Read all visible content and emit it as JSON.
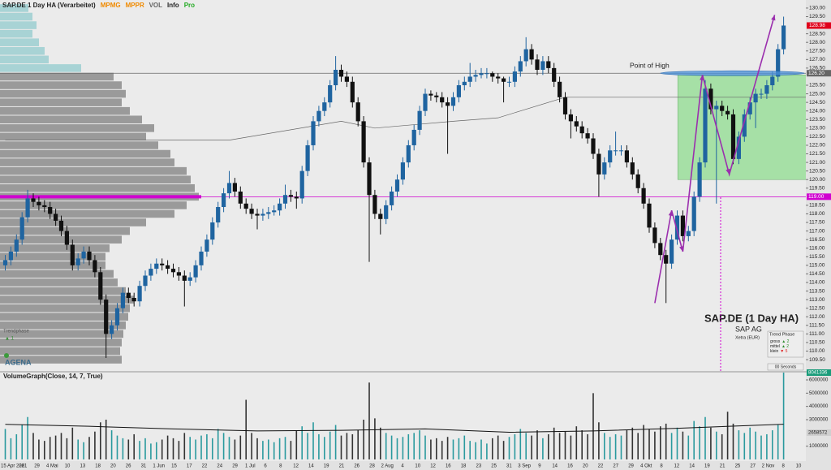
{
  "chart_data": {
    "type": "candlestick",
    "title": "SAP.DE 1 Day HA (Verarbeitet)",
    "indicators": [
      {
        "name": "MPMG",
        "color": "#f08a00"
      },
      {
        "name": "MPPR",
        "color": "#f08a00"
      },
      {
        "name": "VOL",
        "color": "#666666"
      },
      {
        "name": "Info",
        "color": "#222222"
      },
      {
        "name": "Pro",
        "color": "#22aa22"
      }
    ],
    "up_color": "#1f64a0",
    "down_color": "#111111",
    "volume_up_color": "#2a9a9e",
    "volume_down_color": "#333333",
    "ylim": [
      108.84,
      130.47
    ],
    "yticks": [
      {
        "value": 109.5,
        "label": "109.50"
      },
      {
        "value": 110,
        "label": "110.00"
      },
      {
        "value": 110.5,
        "label": "110.50"
      },
      {
        "value": 111,
        "label": "111.00"
      },
      {
        "value": 111.5,
        "label": "111.50"
      },
      {
        "value": 112,
        "label": "112.00"
      },
      {
        "value": 112.5,
        "label": "112.50"
      },
      {
        "value": 113,
        "label": "113.00"
      },
      {
        "value": 113.5,
        "label": "113.50"
      },
      {
        "value": 114,
        "label": "114.00"
      },
      {
        "value": 114.5,
        "label": "114.50"
      },
      {
        "value": 115,
        "label": "115.00"
      },
      {
        "value": 115.5,
        "label": "115.50"
      },
      {
        "value": 116,
        "label": "116.00"
      },
      {
        "value": 116.5,
        "label": "116.50"
      },
      {
        "value": 117,
        "label": "117.00"
      },
      {
        "value": 117.5,
        "label": "117.50"
      },
      {
        "value": 118,
        "label": "118.00"
      },
      {
        "value": 118.5,
        "label": "118.50"
      },
      {
        "value": 119.5,
        "label": "119.50"
      },
      {
        "value": 120,
        "label": "120.00"
      },
      {
        "value": 120.5,
        "label": "120.50"
      },
      {
        "value": 121,
        "label": "121.00"
      },
      {
        "value": 121.5,
        "label": "121.50"
      },
      {
        "value": 122,
        "label": "122.00"
      },
      {
        "value": 122.5,
        "label": "122.50"
      },
      {
        "value": 123,
        "label": "123.00"
      },
      {
        "value": 123.5,
        "label": "123.50"
      },
      {
        "value": 124,
        "label": "124.00"
      },
      {
        "value": 124.5,
        "label": "124.50"
      },
      {
        "value": 125,
        "label": "125.00"
      },
      {
        "value": 125.5,
        "label": "125.50"
      },
      {
        "value": 126.5,
        "label": "126.50"
      },
      {
        "value": 127,
        "label": "127.00"
      },
      {
        "value": 127.5,
        "label": "127.50"
      },
      {
        "value": 128,
        "label": "128.00"
      },
      {
        "value": 128.5,
        "label": "128.50"
      },
      {
        "value": 129.5,
        "label": "129.50"
      },
      {
        "value": 130,
        "label": "130.00"
      }
    ],
    "current_color": "#e0001b",
    "open": [
      115.0,
      115.3,
      115.8,
      116.5,
      117.8,
      118.9,
      118.7,
      118.5,
      118.4,
      118.0,
      117.6,
      117.0,
      116.2,
      115.0,
      115.4,
      115.8,
      115.3,
      114.6,
      113.0,
      111.0,
      111.5,
      112.5,
      113.4,
      113.1,
      112.9,
      113.8,
      114.4,
      114.8,
      115.1,
      115.0,
      114.8,
      114.6,
      114.4,
      114.1,
      114.3,
      115.0,
      115.8,
      116.5,
      117.5,
      118.4,
      119.2,
      119.8,
      119.3,
      118.6,
      118.3,
      118.0,
      117.9,
      118.0,
      118.1,
      118.2,
      118.6,
      119.1,
      119.0,
      118.9,
      120.5,
      122.0,
      123.4,
      124.0,
      124.5,
      125.5,
      126.4,
      126.0,
      125.7,
      124.5,
      123.4,
      121.0,
      119.1,
      118.0,
      117.7,
      118.5,
      119.3,
      120.0,
      121.0,
      122.0,
      122.9,
      124.0,
      125.0,
      124.9,
      124.8,
      124.5,
      124.3,
      124.8,
      125.5,
      125.7,
      126.0,
      126.1,
      126.2,
      126.2,
      126.0,
      125.9,
      125.7,
      125.7,
      126.3,
      126.9,
      127.6,
      127.0,
      126.4,
      126.9,
      126.5,
      125.7,
      124.8,
      123.8,
      123.4,
      123.1,
      122.7,
      122.4,
      121.5,
      120.3,
      121.0,
      121.7,
      121.7,
      121.7,
      121.0,
      120.3,
      119.5,
      118.6,
      117.2,
      116.3,
      115.6,
      115.1,
      116.5,
      117.9,
      116.7,
      117.0,
      119.0,
      121.0,
      125.3,
      124.1,
      124.3,
      124.0,
      123.8,
      121.2,
      122.5,
      123.8,
      124.5,
      125.0,
      125.0,
      125.5,
      126.0,
      127.6
    ],
    "high": [
      115.6,
      116.1,
      116.8,
      118.1,
      119.4,
      119.2,
      119.0,
      118.8,
      118.7,
      118.3,
      117.9,
      117.3,
      116.5,
      115.7,
      116.1,
      116.1,
      115.6,
      114.9,
      113.3,
      111.8,
      112.8,
      113.7,
      113.7,
      113.4,
      114.1,
      114.7,
      115.1,
      115.4,
      115.4,
      115.3,
      115.1,
      114.9,
      114.7,
      114.6,
      115.3,
      116.1,
      116.8,
      117.8,
      118.7,
      119.5,
      120.5,
      120.1,
      119.6,
      118.9,
      118.6,
      118.3,
      118.3,
      118.4,
      118.5,
      118.9,
      119.7,
      119.4,
      119.3,
      120.8,
      122.3,
      123.7,
      124.3,
      124.8,
      125.8,
      127.2,
      126.7,
      126.3,
      126.0,
      124.8,
      123.7,
      121.3,
      119.4,
      118.3,
      118.8,
      119.6,
      120.3,
      121.3,
      122.3,
      123.2,
      124.3,
      125.3,
      125.2,
      125.1,
      125.1,
      124.8,
      125.1,
      125.8,
      126.0,
      126.8,
      126.4,
      126.5,
      126.5,
      126.3,
      126.2,
      126.0,
      126.0,
      126.6,
      127.2,
      128.3,
      127.9,
      127.3,
      127.2,
      127.2,
      126.8,
      126.0,
      125.1,
      124.1,
      123.7,
      123.4,
      123.0,
      122.7,
      121.8,
      121.3,
      122.0,
      122.8,
      122.0,
      122.0,
      121.3,
      120.6,
      119.8,
      118.9,
      117.5,
      116.6,
      115.9,
      116.8,
      118.2,
      118.2,
      117.3,
      119.3,
      121.3,
      125.8,
      125.6,
      124.6,
      124.6,
      124.3,
      124.1,
      122.8,
      124.1,
      124.8,
      125.3,
      125.3,
      125.8,
      126.3,
      127.9,
      129.5
    ],
    "low": [
      114.7,
      115.0,
      115.5,
      116.2,
      117.5,
      118.4,
      118.2,
      118.1,
      117.7,
      117.3,
      116.7,
      115.9,
      114.7,
      114.7,
      115.1,
      115.0,
      114.3,
      112.7,
      109.6,
      110.7,
      111.2,
      112.2,
      112.8,
      112.6,
      112.6,
      113.5,
      114.1,
      114.5,
      114.7,
      114.5,
      114.3,
      114.1,
      112.6,
      113.8,
      114.0,
      114.7,
      115.5,
      116.2,
      117.2,
      118.1,
      118.9,
      119.0,
      118.3,
      118.0,
      117.7,
      117.1,
      117.6,
      117.7,
      117.9,
      117.9,
      118.3,
      118.7,
      118.3,
      118.6,
      120.2,
      121.7,
      123.1,
      123.7,
      124.2,
      125.2,
      125.7,
      125.4,
      124.2,
      123.1,
      120.7,
      115.2,
      117.7,
      116.8,
      117.4,
      118.2,
      119.0,
      119.7,
      120.7,
      121.7,
      122.6,
      123.7,
      124.6,
      124.5,
      124.2,
      121.5,
      124.0,
      124.5,
      125.2,
      125.4,
      125.7,
      125.9,
      125.9,
      125.7,
      125.6,
      124.5,
      125.4,
      125.4,
      126.0,
      126.6,
      126.7,
      126.1,
      126.1,
      126.2,
      125.4,
      124.5,
      123.5,
      122.4,
      122.8,
      122.4,
      122.1,
      121.2,
      119.0,
      120.0,
      120.7,
      121.4,
      121.4,
      120.7,
      120.0,
      119.2,
      118.3,
      116.9,
      116.0,
      115.3,
      112.8,
      114.8,
      116.2,
      116.4,
      116.4,
      116.7,
      118.7,
      120.7,
      123.8,
      118.6,
      123.7,
      123.5,
      120.9,
      120.9,
      122.2,
      123.5,
      123.0,
      124.7,
      124.7,
      125.2,
      125.7,
      127.3
    ],
    "close": [
      115.3,
      115.8,
      116.5,
      117.8,
      118.9,
      118.7,
      118.5,
      118.4,
      118.0,
      117.6,
      117.0,
      116.2,
      115.0,
      115.4,
      115.8,
      115.3,
      114.6,
      113.0,
      111.0,
      111.5,
      112.5,
      113.4,
      113.1,
      112.9,
      113.8,
      114.4,
      114.8,
      115.1,
      115.0,
      114.8,
      114.6,
      114.4,
      114.1,
      114.3,
      115.0,
      115.8,
      116.5,
      117.5,
      118.4,
      119.2,
      119.8,
      119.3,
      118.6,
      118.3,
      118.0,
      117.9,
      118.0,
      118.1,
      118.2,
      118.6,
      119.1,
      119.0,
      118.9,
      120.5,
      122.0,
      123.4,
      124.0,
      124.5,
      125.5,
      126.4,
      126.0,
      125.7,
      124.5,
      123.4,
      121.0,
      119.1,
      118.0,
      117.7,
      118.5,
      119.3,
      120.0,
      121.0,
      122.0,
      122.9,
      124.0,
      125.0,
      124.9,
      124.8,
      124.5,
      124.3,
      124.8,
      125.5,
      125.7,
      126.0,
      126.1,
      126.2,
      126.2,
      126.0,
      125.9,
      125.7,
      125.7,
      126.3,
      126.9,
      127.6,
      127.0,
      126.4,
      126.9,
      126.5,
      125.7,
      124.8,
      123.8,
      123.4,
      123.1,
      122.7,
      122.4,
      121.5,
      120.3,
      121.0,
      121.7,
      121.7,
      121.7,
      121.0,
      120.3,
      119.5,
      118.6,
      117.2,
      116.3,
      115.6,
      115.1,
      116.5,
      117.9,
      116.7,
      117.0,
      119.0,
      121.0,
      125.3,
      124.1,
      124.3,
      124.0,
      123.8,
      121.2,
      122.5,
      123.8,
      124.5,
      125.0,
      125.0,
      125.5,
      126.0,
      127.6,
      128.98
    ],
    "volume_title": "VolumeGraph(Close, 14, 7, True)",
    "volume": [
      2300000,
      1600000,
      1900000,
      2600000,
      3200000,
      2000000,
      1500000,
      1400000,
      1700000,
      1800000,
      2000000,
      1600000,
      2400000,
      1500000,
      1300000,
      1700000,
      2100000,
      2800000,
      3000000,
      2200000,
      1800000,
      1600000,
      1500000,
      1900000,
      1400000,
      1600000,
      1200000,
      1300000,
      1500000,
      1800000,
      1600000,
      1400000,
      2000000,
      1700000,
      1500000,
      1800000,
      1900000,
      1600000,
      2300000,
      2000000,
      1700000,
      1500000,
      1800000,
      4500000,
      2000000,
      1600000,
      1400000,
      1500000,
      1300000,
      1600000,
      1700000,
      1400000,
      2200000,
      2500000,
      2000000,
      2800000,
      1900000,
      1700000,
      2100000,
      2600000,
      1800000,
      2000000,
      1900000,
      2200000,
      3000000,
      5800000,
      3100000,
      2400000,
      2000000,
      1800000,
      1600000,
      1700000,
      1900000,
      2000000,
      2200000,
      1800000,
      1500000,
      1600000,
      1400000,
      1700000,
      1500000,
      1600000,
      1800000,
      1400000,
      1300000,
      1500000,
      1200000,
      1600000,
      1800000,
      1400000,
      1700000,
      1900000,
      2300000,
      2000000,
      1800000,
      2200000,
      1600000,
      1900000,
      2400000,
      2000000,
      2100000,
      1800000,
      2500000,
      2200000,
      1900000,
      5000000,
      2800000,
      2000000,
      1700000,
      1900000,
      1800000,
      2200000,
      2400000,
      2000000,
      2600000,
      2300000,
      2100000,
      2500000,
      2700000,
      2000000,
      2400000,
      2100000,
      1800000,
      2900000,
      2500000,
      3200000,
      2400000,
      2100000,
      1900000,
      3600000,
      2700000,
      2200000,
      2000000,
      2400000,
      2100000,
      1800000,
      1900000,
      2200000,
      2600000,
      8041336
    ],
    "volume_last_color": "#1a9c7a",
    "volume_ma": {
      "x": [
        0,
        15,
        30,
        45,
        60,
        75,
        90,
        105,
        120,
        139
      ],
      "values": [
        2650000,
        2500000,
        2300000,
        2150000,
        2200000,
        2300000,
        2050000,
        2150000,
        2350000,
        2658572
      ]
    },
    "vlim": [
      0,
      6490000
    ],
    "vticks": [
      1000000,
      3000000,
      4000000,
      5000000,
      6000000
    ],
    "level_line": {
      "x": [
        0,
        24,
        40,
        60,
        66,
        80,
        88,
        92,
        100,
        120,
        143
      ],
      "values": [
        122.3,
        122.3,
        122.3,
        123.4,
        123.0,
        123.4,
        123.6,
        124.0,
        124.8,
        124.8,
        124.8
      ]
    },
    "hlines": [
      {
        "value": 119,
        "label": "119.00",
        "color": "#d000d0"
      },
      {
        "value": 126.2,
        "label": "126.20",
        "color": "#666666"
      }
    ],
    "profile": {
      "levels": [
        130,
        129.5,
        129,
        128.5,
        128,
        127.5,
        127,
        126.5,
        126,
        125.5,
        125,
        124.5,
        124,
        123.5,
        123,
        122.5,
        122,
        121.5,
        121,
        120.5,
        120,
        119.5,
        119,
        118.5,
        118,
        117.5,
        117,
        116.5,
        116,
        115.5,
        115,
        114.5,
        114,
        113.5,
        113,
        112.5,
        112,
        111.5,
        111,
        110.5,
        110,
        109.5
      ],
      "values": [
        35,
        40,
        45,
        40,
        48,
        55,
        60,
        100,
        140,
        150,
        155,
        150,
        160,
        175,
        190,
        180,
        195,
        210,
        215,
        230,
        235,
        240,
        245,
        230,
        215,
        180,
        160,
        150,
        135,
        130,
        130,
        140,
        145,
        155,
        165,
        160,
        158,
        155,
        152,
        150,
        148,
        150
      ],
      "upper_color": "#9ccfd1",
      "color": "#8c8c8c",
      "split": 126.2
    },
    "zone": {
      "x": [
        120.1,
        143.3
      ],
      "y": [
        120.0,
        126.1
      ],
      "color": "#8fdc8f"
    },
    "point_of_high": {
      "label": "Point of High",
      "x": [
        117,
        142.7
      ],
      "y": 126.2,
      "color": "#4a90d9"
    },
    "zigzag": {
      "x": [
        116,
        119,
        121,
        124.5,
        129.3,
        137.4
      ],
      "values": [
        112.8,
        118.2,
        115.8,
        126.1,
        120.3,
        129.6
      ],
      "color": "#9b2fae"
    },
    "dates": [
      "15 Apr 2021",
      "26",
      "29",
      "4 Mai",
      "10",
      "13",
      "18",
      "20",
      "26",
      "31",
      "1 Jun",
      "15",
      "17",
      "22",
      "24",
      "29",
      "1 Jul",
      "6",
      "8",
      "12",
      "14",
      "19",
      "21",
      "26",
      "28",
      "2 Aug",
      "4",
      "10",
      "12",
      "16",
      "18",
      "23",
      "25",
      "31",
      "3 Sep",
      "9",
      "14",
      "16",
      "20",
      "22",
      "27",
      "29",
      "4 Okt",
      "8",
      "12",
      "14",
      "19",
      "21",
      "25",
      "27",
      "2 Nov",
      "8",
      "10"
    ],
    "info": {
      "title": "SAP.DE (1 Day HA)",
      "name": "SAP AG",
      "exchange": "Xetra   (EUR)",
      "trend_title": "Trend Phase",
      "trend_rows": [
        {
          "label": "gross",
          "mark": "▲ 2"
        },
        {
          "label": "mittel",
          "mark": "▲ 2"
        },
        {
          "label": "klein",
          "mark": "▼ 5"
        }
      ],
      "timer": "00 Seconds"
    },
    "left_label": "Trendphase",
    "left_mark": "▲ 1",
    "logo": "AGENA"
  }
}
